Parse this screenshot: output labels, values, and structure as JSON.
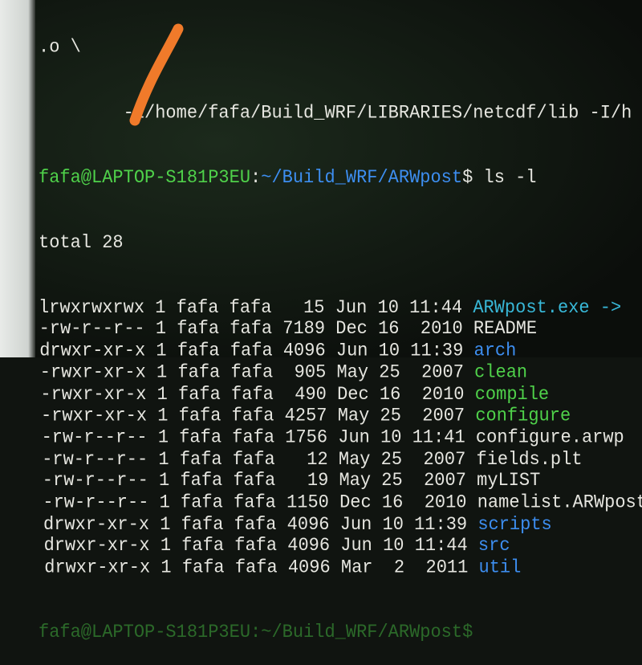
{
  "terminal": {
    "top_fragment": ".o \\",
    "continuation": "        -L/home/fafa/Build_WRF/LIBRARIES/netcdf/lib -I/h",
    "prompt": {
      "user_host": "fafa@LAPTOP-S181P3EU",
      "separator": ":",
      "path": "~/Build_WRF/ARWpost",
      "symbol": "$",
      "command": " ls -l"
    },
    "total": "total 28",
    "entries": [
      {
        "perms": "lrwxrwxrwx",
        "links": "1",
        "owner": "fafa",
        "group": "fafa",
        "size": "  15",
        "date": "Jun 10 11:44",
        "name": "ARWpost.exe ->",
        "kind": "cyan"
      },
      {
        "perms": "-rw-r--r--",
        "links": "1",
        "owner": "fafa",
        "group": "fafa",
        "size": "7189",
        "date": "Dec 16  2010",
        "name": "README",
        "kind": "white"
      },
      {
        "perms": "drwxr-xr-x",
        "links": "1",
        "owner": "fafa",
        "group": "fafa",
        "size": "4096",
        "date": "Jun 10 11:39",
        "name": "arch",
        "kind": "blue"
      },
      {
        "perms": "-rwxr-xr-x",
        "links": "1",
        "owner": "fafa",
        "group": "fafa",
        "size": " 905",
        "date": "May 25  2007",
        "name": "clean",
        "kind": "green"
      },
      {
        "perms": "-rwxr-xr-x",
        "links": "1",
        "owner": "fafa",
        "group": "fafa",
        "size": " 490",
        "date": "Dec 16  2010",
        "name": "compile",
        "kind": "green"
      },
      {
        "perms": "-rwxr-xr-x",
        "links": "1",
        "owner": "fafa",
        "group": "fafa",
        "size": "4257",
        "date": "May 25  2007",
        "name": "configure",
        "kind": "green"
      },
      {
        "perms": "-rw-r--r--",
        "links": "1",
        "owner": "fafa",
        "group": "fafa",
        "size": "1756",
        "date": "Jun 10 11:41",
        "name": "configure.arwp",
        "kind": "white"
      },
      {
        "perms": "-rw-r--r--",
        "links": "1",
        "owner": "fafa",
        "group": "fafa",
        "size": "  12",
        "date": "May 25  2007",
        "name": "fields.plt",
        "kind": "white"
      },
      {
        "perms": "-rw-r--r--",
        "links": "1",
        "owner": "fafa",
        "group": "fafa",
        "size": "  19",
        "date": "May 25  2007",
        "name": "myLIST",
        "kind": "white"
      },
      {
        "perms": "-rw-r--r--",
        "links": "1",
        "owner": "fafa",
        "group": "fafa",
        "size": "1150",
        "date": "Dec 16  2010",
        "name": "namelist.ARWpost",
        "kind": "white"
      },
      {
        "perms": "drwxr-xr-x",
        "links": "1",
        "owner": "fafa",
        "group": "fafa",
        "size": "4096",
        "date": "Jun 10 11:39",
        "name": "scripts",
        "kind": "blue"
      },
      {
        "perms": "drwxr-xr-x",
        "links": "1",
        "owner": "fafa",
        "group": "fafa",
        "size": "4096",
        "date": "Jun 10 11:44",
        "name": "src",
        "kind": "blue"
      },
      {
        "perms": "drwxr-xr-x",
        "links": "1",
        "owner": "fafa",
        "group": "fafa",
        "size": "4096",
        "date": "Mar  2  2011",
        "name": "util",
        "kind": "blue"
      }
    ],
    "bottom_prompt_partial": "fafa@LAPTOP-S181P3EU:~/Build_WRF/ARWpost$"
  },
  "colors": {
    "user_host": "#4fd14a",
    "path": "#3d8ef0",
    "exec": "#4fd14a",
    "dir": "#3d8ef0",
    "link": "#38b8d8",
    "annotation": "#f07a2a"
  }
}
